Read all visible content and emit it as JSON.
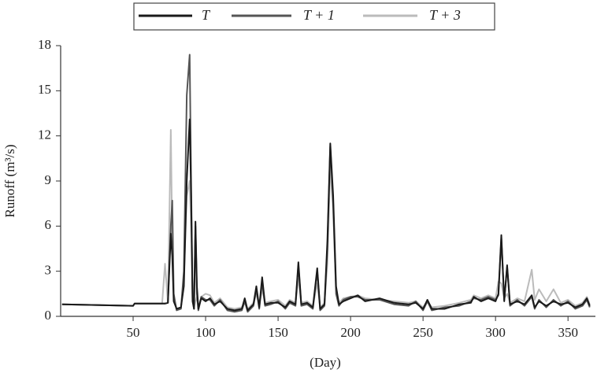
{
  "chart_data": {
    "type": "line",
    "x_label": "(Day)",
    "y_label": "Runoff (m³/s)",
    "x": [
      1,
      50,
      51,
      70,
      72,
      74,
      76,
      77,
      78,
      80,
      83,
      85,
      87,
      89,
      90,
      91,
      92,
      93,
      94,
      95,
      97,
      100,
      103,
      106,
      110,
      115,
      120,
      125,
      127,
      129,
      133,
      135,
      137,
      139,
      141,
      145,
      150,
      155,
      158,
      162,
      164,
      166,
      170,
      174,
      177,
      179,
      182,
      184,
      186,
      188,
      190,
      192,
      195,
      200,
      205,
      210,
      220,
      230,
      240,
      245,
      250,
      253,
      256,
      265,
      275,
      283,
      285,
      290,
      295,
      300,
      302,
      304,
      306,
      308,
      310,
      315,
      320,
      325,
      327,
      330,
      335,
      340,
      345,
      350,
      355,
      360,
      363,
      365
    ],
    "series": [
      {
        "name": "T",
        "color": "#1a1a1a",
        "values": [
          0.8,
          0.7,
          0.85,
          0.85,
          0.85,
          0.9,
          5.5,
          4,
          1,
          0.5,
          0.6,
          2,
          9,
          13.1,
          8,
          1,
          0.5,
          6.3,
          2,
          0.5,
          1.2,
          1,
          1.2,
          0.8,
          1,
          0.5,
          0.4,
          0.5,
          1.2,
          0.4,
          0.8,
          2,
          0.6,
          2.6,
          0.8,
          0.9,
          0.9,
          0.6,
          1,
          0.8,
          3.6,
          0.8,
          0.9,
          0.6,
          3.2,
          0.5,
          0.8,
          5,
          11.5,
          8,
          2,
          0.8,
          1,
          1.2,
          1.4,
          1,
          1.2,
          0.9,
          0.8,
          0.9,
          0.5,
          1.1,
          0.5,
          0.5,
          0.8,
          0.9,
          1.3,
          1,
          1.2,
          1,
          1.5,
          5.4,
          1,
          3.4,
          0.8,
          1,
          0.8,
          1.4,
          0.6,
          1,
          0.7,
          1,
          0.8,
          0.9,
          0.6,
          0.8,
          1.2,
          0.7
        ]
      },
      {
        "name": "T + 1",
        "color": "#555555",
        "values": [
          0.8,
          0.7,
          0.85,
          0.85,
          0.85,
          0.9,
          6,
          7.7,
          1.5,
          0.4,
          0.5,
          3,
          14.7,
          17.4,
          9,
          1.2,
          0.5,
          6,
          1.5,
          0.4,
          1.3,
          1.1,
          1.1,
          0.7,
          1.1,
          0.4,
          0.3,
          0.4,
          1,
          0.3,
          0.7,
          1.8,
          0.5,
          2.3,
          0.7,
          0.8,
          1,
          0.5,
          0.9,
          0.7,
          3.4,
          0.7,
          0.8,
          0.5,
          3,
          0.4,
          0.7,
          4.5,
          11.3,
          7.5,
          1.5,
          0.7,
          1.1,
          1.3,
          1.3,
          1.1,
          1.1,
          0.8,
          0.7,
          1,
          0.4,
          1,
          0.4,
          0.6,
          0.7,
          1,
          1.2,
          1.1,
          1.3,
          1.1,
          1.4,
          5.2,
          1.1,
          3.3,
          0.7,
          1.1,
          0.7,
          1.3,
          0.5,
          1.1,
          0.6,
          1.1,
          0.7,
          1,
          0.5,
          0.7,
          1.1,
          0.6
        ]
      },
      {
        "name": "T + 3",
        "color": "#bbbbbb",
        "values": [
          0.8,
          0.7,
          0.85,
          0.85,
          3.5,
          0.9,
          12.4,
          5,
          1.2,
          0.5,
          0.6,
          2.5,
          8,
          9,
          6,
          1.5,
          0.6,
          1,
          1.3,
          0.6,
          1.3,
          1.5,
          1.4,
          0.9,
          1.2,
          0.6,
          0.5,
          0.6,
          0.9,
          0.5,
          0.9,
          1.5,
          0.7,
          1.8,
          0.9,
          1,
          1.1,
          0.7,
          1.1,
          0.9,
          2.5,
          0.9,
          1,
          0.7,
          2.2,
          0.6,
          0.9,
          3.5,
          10,
          7,
          1.8,
          0.9,
          1.2,
          1.3,
          1.4,
          1.2,
          1.1,
          1,
          0.9,
          1,
          0.6,
          1,
          0.6,
          0.7,
          0.9,
          1.1,
          1.4,
          1.2,
          1.4,
          1.2,
          2.3,
          2.2,
          1.2,
          1.5,
          0.9,
          1.2,
          1,
          3.1,
          1.1,
          1.8,
          1,
          1.8,
          0.9,
          1.1,
          0.7,
          0.9,
          1.3,
          0.8
        ]
      }
    ],
    "xlim": [
      0,
      370
    ],
    "xticks": [
      50,
      100,
      150,
      200,
      250,
      300,
      350
    ],
    "ylim": [
      0,
      18
    ],
    "yticks": [
      0,
      3,
      6,
      9,
      12,
      15,
      18
    ],
    "legend": "top"
  }
}
